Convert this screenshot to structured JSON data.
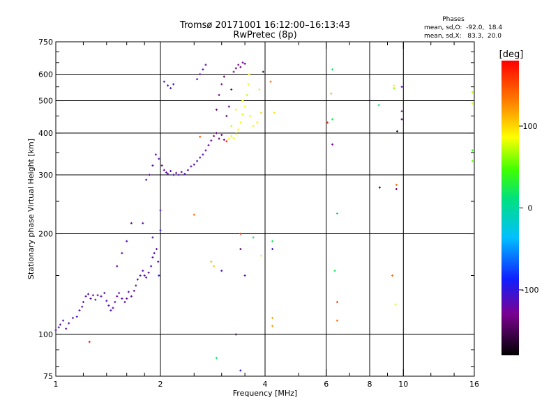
{
  "chart_data": {
    "type": "scatter",
    "title": "Tromsø 20171001 16:12:00–16:13:43",
    "subtitle": "RwPretec (8p)",
    "xlabel": "Frequency [MHz]",
    "ylabel": "Stationary phase Virtual Height [km]",
    "x_scale": "log",
    "y_scale": "log",
    "xlim": [
      1,
      16
    ],
    "ylim": [
      75,
      750
    ],
    "x_ticks": [
      1,
      2,
      4,
      6,
      8,
      10,
      16
    ],
    "y_ticks": [
      75,
      100,
      200,
      300,
      400,
      500,
      600,
      750
    ],
    "x_gridlines": [
      2,
      4,
      6,
      8,
      10
    ],
    "y_gridlines": [
      100,
      200,
      300,
      400,
      500,
      600
    ],
    "legend": {
      "header": "Phases",
      "line1": "mean, sd,O:  -92.0,  18.4",
      "line2": "mean, sd,X:   83.3,  20.0"
    },
    "colorbar": {
      "label": "[deg]",
      "range": [
        -180,
        180
      ],
      "ticks": [
        100,
        0,
        -100
      ],
      "tick_labels": [
        "100",
        "0",
        "-100"
      ]
    },
    "points": [
      {
        "x": 1.0,
        "y": 103,
        "phase": -115
      },
      {
        "x": 1.02,
        "y": 105,
        "phase": -110
      },
      {
        "x": 1.03,
        "y": 107,
        "phase": -118
      },
      {
        "x": 1.05,
        "y": 110,
        "phase": -112
      },
      {
        "x": 1.07,
        "y": 104,
        "phase": -120
      },
      {
        "x": 1.09,
        "y": 108,
        "phase": -115
      },
      {
        "x": 1.12,
        "y": 112,
        "phase": -118
      },
      {
        "x": 1.15,
        "y": 113,
        "phase": -110
      },
      {
        "x": 1.17,
        "y": 118,
        "phase": -122
      },
      {
        "x": 1.19,
        "y": 121,
        "phase": -115
      },
      {
        "x": 1.2,
        "y": 125,
        "phase": -118
      },
      {
        "x": 1.22,
        "y": 130,
        "phase": -112
      },
      {
        "x": 1.24,
        "y": 132,
        "phase": -120
      },
      {
        "x": 1.26,
        "y": 128,
        "phase": -115
      },
      {
        "x": 1.28,
        "y": 131,
        "phase": -118
      },
      {
        "x": 1.3,
        "y": 127,
        "phase": -110
      },
      {
        "x": 1.32,
        "y": 131,
        "phase": -116
      },
      {
        "x": 1.35,
        "y": 130,
        "phase": -114
      },
      {
        "x": 1.38,
        "y": 133,
        "phase": -119
      },
      {
        "x": 1.4,
        "y": 126,
        "phase": -115
      },
      {
        "x": 1.42,
        "y": 122,
        "phase": -117
      },
      {
        "x": 1.44,
        "y": 118,
        "phase": -111
      },
      {
        "x": 1.46,
        "y": 120,
        "phase": -118
      },
      {
        "x": 1.48,
        "y": 125,
        "phase": -116
      },
      {
        "x": 1.5,
        "y": 130,
        "phase": -120
      },
      {
        "x": 1.52,
        "y": 133,
        "phase": -112
      },
      {
        "x": 1.55,
        "y": 128,
        "phase": -118
      },
      {
        "x": 1.58,
        "y": 125,
        "phase": -115
      },
      {
        "x": 1.6,
        "y": 128,
        "phase": -119
      },
      {
        "x": 1.62,
        "y": 134,
        "phase": -113
      },
      {
        "x": 1.65,
        "y": 130,
        "phase": -117
      },
      {
        "x": 1.68,
        "y": 135,
        "phase": -115
      },
      {
        "x": 1.7,
        "y": 140,
        "phase": -118
      },
      {
        "x": 1.72,
        "y": 146,
        "phase": -116
      },
      {
        "x": 1.75,
        "y": 150,
        "phase": -110
      },
      {
        "x": 1.78,
        "y": 155,
        "phase": -114
      },
      {
        "x": 1.8,
        "y": 150,
        "phase": -118
      },
      {
        "x": 1.82,
        "y": 148,
        "phase": -113
      },
      {
        "x": 1.85,
        "y": 153,
        "phase": -119
      },
      {
        "x": 1.88,
        "y": 160,
        "phase": -114
      },
      {
        "x": 1.9,
        "y": 170,
        "phase": -117
      },
      {
        "x": 1.92,
        "y": 175,
        "phase": -112
      },
      {
        "x": 1.95,
        "y": 180,
        "phase": -118
      },
      {
        "x": 1.97,
        "y": 165,
        "phase": -116
      },
      {
        "x": 1.98,
        "y": 150,
        "phase": -100
      },
      {
        "x": 1.5,
        "y": 160,
        "phase": -120
      },
      {
        "x": 1.55,
        "y": 175,
        "phase": -118
      },
      {
        "x": 1.6,
        "y": 190,
        "phase": -115
      },
      {
        "x": 1.65,
        "y": 215,
        "phase": -125
      },
      {
        "x": 1.78,
        "y": 215,
        "phase": -120
      },
      {
        "x": 1.9,
        "y": 195,
        "phase": -110
      },
      {
        "x": 1.82,
        "y": 290,
        "phase": -115
      },
      {
        "x": 1.86,
        "y": 300,
        "phase": -118
      },
      {
        "x": 1.9,
        "y": 320,
        "phase": -112
      },
      {
        "x": 1.94,
        "y": 345,
        "phase": -117
      },
      {
        "x": 1.98,
        "y": 335,
        "phase": -115
      },
      {
        "x": 2.0,
        "y": 205,
        "phase": -100
      },
      {
        "x": 2.02,
        "y": 320,
        "phase": -110
      },
      {
        "x": 2.05,
        "y": 310,
        "phase": -116
      },
      {
        "x": 2.08,
        "y": 305,
        "phase": -118
      },
      {
        "x": 2.1,
        "y": 302,
        "phase": -112
      },
      {
        "x": 2.14,
        "y": 308,
        "phase": -117
      },
      {
        "x": 2.18,
        "y": 300,
        "phase": -113
      },
      {
        "x": 2.22,
        "y": 304,
        "phase": -119
      },
      {
        "x": 2.26,
        "y": 300,
        "phase": -114
      },
      {
        "x": 2.3,
        "y": 306,
        "phase": -118
      },
      {
        "x": 2.35,
        "y": 302,
        "phase": -112
      },
      {
        "x": 2.4,
        "y": 310,
        "phase": -116
      },
      {
        "x": 2.45,
        "y": 318,
        "phase": -115
      },
      {
        "x": 2.5,
        "y": 322,
        "phase": -118
      },
      {
        "x": 2.55,
        "y": 330,
        "phase": -114
      },
      {
        "x": 2.6,
        "y": 338,
        "phase": -117
      },
      {
        "x": 2.65,
        "y": 345,
        "phase": -112
      },
      {
        "x": 2.7,
        "y": 355,
        "phase": -116
      },
      {
        "x": 2.75,
        "y": 368,
        "phase": -118
      },
      {
        "x": 2.8,
        "y": 380,
        "phase": -120
      },
      {
        "x": 2.85,
        "y": 392,
        "phase": -135
      },
      {
        "x": 2.9,
        "y": 400,
        "phase": -140
      },
      {
        "x": 2.95,
        "y": 385,
        "phase": -145
      },
      {
        "x": 3.0,
        "y": 395,
        "phase": -138
      },
      {
        "x": 3.05,
        "y": 382,
        "phase": -130
      },
      {
        "x": 3.1,
        "y": 378,
        "phase": 165
      },
      {
        "x": 3.15,
        "y": 385,
        "phase": 90
      },
      {
        "x": 3.2,
        "y": 392,
        "phase": 80
      },
      {
        "x": 3.25,
        "y": 386,
        "phase": 85
      },
      {
        "x": 3.3,
        "y": 398,
        "phase": 78
      },
      {
        "x": 3.35,
        "y": 410,
        "phase": 88
      },
      {
        "x": 3.4,
        "y": 430,
        "phase": 82
      },
      {
        "x": 3.45,
        "y": 455,
        "phase": 76
      },
      {
        "x": 3.5,
        "y": 480,
        "phase": 85
      },
      {
        "x": 3.55,
        "y": 520,
        "phase": 72
      },
      {
        "x": 3.58,
        "y": 560,
        "phase": 80
      },
      {
        "x": 3.6,
        "y": 600,
        "phase": 88
      },
      {
        "x": 3.45,
        "y": 500,
        "phase": 86
      },
      {
        "x": 3.62,
        "y": 450,
        "phase": 82
      },
      {
        "x": 3.7,
        "y": 420,
        "phase": 84
      },
      {
        "x": 3.8,
        "y": 430,
        "phase": 95
      },
      {
        "x": 3.9,
        "y": 460,
        "phase": 100
      },
      {
        "x": 3.85,
        "y": 540,
        "phase": 80
      },
      {
        "x": 3.2,
        "y": 420,
        "phase": 75
      },
      {
        "x": 3.3,
        "y": 470,
        "phase": 82
      },
      {
        "x": 2.9,
        "y": 470,
        "phase": -140
      },
      {
        "x": 2.95,
        "y": 520,
        "phase": -135
      },
      {
        "x": 3.0,
        "y": 560,
        "phase": -130
      },
      {
        "x": 3.05,
        "y": 590,
        "phase": -145
      },
      {
        "x": 3.1,
        "y": 450,
        "phase": -138
      },
      {
        "x": 3.15,
        "y": 480,
        "phase": -142
      },
      {
        "x": 3.2,
        "y": 540,
        "phase": -135
      },
      {
        "x": 3.25,
        "y": 610,
        "phase": -128
      },
      {
        "x": 3.3,
        "y": 625,
        "phase": -140
      },
      {
        "x": 3.35,
        "y": 640,
        "phase": -132
      },
      {
        "x": 3.4,
        "y": 630,
        "phase": -138
      },
      {
        "x": 3.45,
        "y": 650,
        "phase": -125
      },
      {
        "x": 3.5,
        "y": 645,
        "phase": -130
      },
      {
        "x": 2.6,
        "y": 600,
        "phase": -115
      },
      {
        "x": 2.65,
        "y": 620,
        "phase": -112
      },
      {
        "x": 2.7,
        "y": 640,
        "phase": -118
      },
      {
        "x": 2.55,
        "y": 580,
        "phase": -110
      },
      {
        "x": 2.1,
        "y": 555,
        "phase": -105
      },
      {
        "x": 2.14,
        "y": 545,
        "phase": -110
      },
      {
        "x": 2.18,
        "y": 560,
        "phase": -100
      },
      {
        "x": 2.05,
        "y": 570,
        "phase": -108
      },
      {
        "x": 2.0,
        "y": 235,
        "phase": -115
      },
      {
        "x": 2.5,
        "y": 228,
        "phase": 140
      },
      {
        "x": 2.6,
        "y": 390,
        "phase": 150
      },
      {
        "x": 2.8,
        "y": 165,
        "phase": 110
      },
      {
        "x": 2.85,
        "y": 160,
        "phase": 105
      },
      {
        "x": 3.0,
        "y": 155,
        "phase": -105
      },
      {
        "x": 3.3,
        "y": 100,
        "phase": -160
      },
      {
        "x": 3.4,
        "y": 200,
        "phase": 165
      },
      {
        "x": 3.4,
        "y": 180,
        "phase": -140
      },
      {
        "x": 3.5,
        "y": 150,
        "phase": -120
      },
      {
        "x": 3.7,
        "y": 195,
        "phase": 20
      },
      {
        "x": 3.9,
        "y": 172,
        "phase": 90
      },
      {
        "x": 3.95,
        "y": 610,
        "phase": -150
      },
      {
        "x": 4.15,
        "y": 570,
        "phase": 140
      },
      {
        "x": 4.25,
        "y": 460,
        "phase": 95
      },
      {
        "x": 4.2,
        "y": 190,
        "phase": 20
      },
      {
        "x": 4.2,
        "y": 180,
        "phase": -105
      },
      {
        "x": 4.2,
        "y": 112,
        "phase": 115
      },
      {
        "x": 4.2,
        "y": 106,
        "phase": 120
      },
      {
        "x": 6.05,
        "y": 430,
        "phase": 170
      },
      {
        "x": 6.25,
        "y": 620,
        "phase": 20
      },
      {
        "x": 6.2,
        "y": 525,
        "phase": 110
      },
      {
        "x": 6.25,
        "y": 440,
        "phase": 25
      },
      {
        "x": 6.25,
        "y": 370,
        "phase": -125
      },
      {
        "x": 6.35,
        "y": 155,
        "phase": 20
      },
      {
        "x": 6.45,
        "y": 230,
        "phase": 10
      },
      {
        "x": 6.45,
        "y": 125,
        "phase": 155
      },
      {
        "x": 6.45,
        "y": 110,
        "phase": 140
      },
      {
        "x": 2.9,
        "y": 85,
        "phase": 15
      },
      {
        "x": 3.4,
        "y": 78,
        "phase": -105
      },
      {
        "x": 1.25,
        "y": 95,
        "phase": 170
      },
      {
        "x": 8.5,
        "y": 485,
        "phase": 20
      },
      {
        "x": 8.55,
        "y": 275,
        "phase": -160
      },
      {
        "x": 9.4,
        "y": 555,
        "phase": 90
      },
      {
        "x": 9.4,
        "y": 545,
        "phase": 60
      },
      {
        "x": 9.55,
        "y": 280,
        "phase": 140
      },
      {
        "x": 9.55,
        "y": 272,
        "phase": -140
      },
      {
        "x": 9.6,
        "y": 405,
        "phase": -160
      },
      {
        "x": 9.9,
        "y": 550,
        "phase": -120
      },
      {
        "x": 9.9,
        "y": 465,
        "phase": -130
      },
      {
        "x": 9.9,
        "y": 440,
        "phase": -140
      },
      {
        "x": 9.3,
        "y": 150,
        "phase": 140
      },
      {
        "x": 9.5,
        "y": 123,
        "phase": 80
      },
      {
        "x": 15.8,
        "y": 530,
        "phase": 70
      },
      {
        "x": 15.8,
        "y": 490,
        "phase": 80
      },
      {
        "x": 15.8,
        "y": 355,
        "phase": 40
      },
      {
        "x": 15.8,
        "y": 330,
        "phase": 55
      }
    ]
  }
}
